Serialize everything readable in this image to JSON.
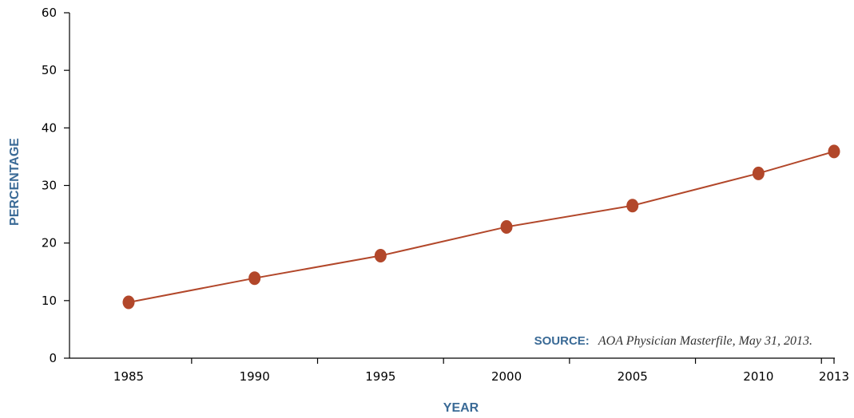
{
  "colors": {
    "series": "#b2472a",
    "axis": "#000000",
    "label_blue": "#3a6a96"
  },
  "chart_data": {
    "type": "line",
    "xlabel": "YEAR",
    "ylabel": "PERCENTAGE",
    "x": [
      1985,
      1990,
      1995,
      2000,
      2005,
      2010,
      2013
    ],
    "x_tick_labels": [
      "1985",
      "1990",
      "1995",
      "2000",
      "2005",
      "2010",
      "2013"
    ],
    "y_ticks": [
      0,
      10,
      20,
      30,
      40,
      50,
      60
    ],
    "y_tick_labels": [
      "0",
      "10",
      "20",
      "30",
      "40",
      "50",
      "60"
    ],
    "ylim": [
      0,
      60
    ],
    "grid": false,
    "legend": "none",
    "series": [
      {
        "values": [
          9.7,
          13.9,
          17.8,
          22.8,
          26.5,
          32.1,
          35.9
        ]
      }
    ],
    "annotation": {
      "prefix": "SOURCE:",
      "text": "AOA Physician Masterfile, May 31, 2013."
    }
  }
}
